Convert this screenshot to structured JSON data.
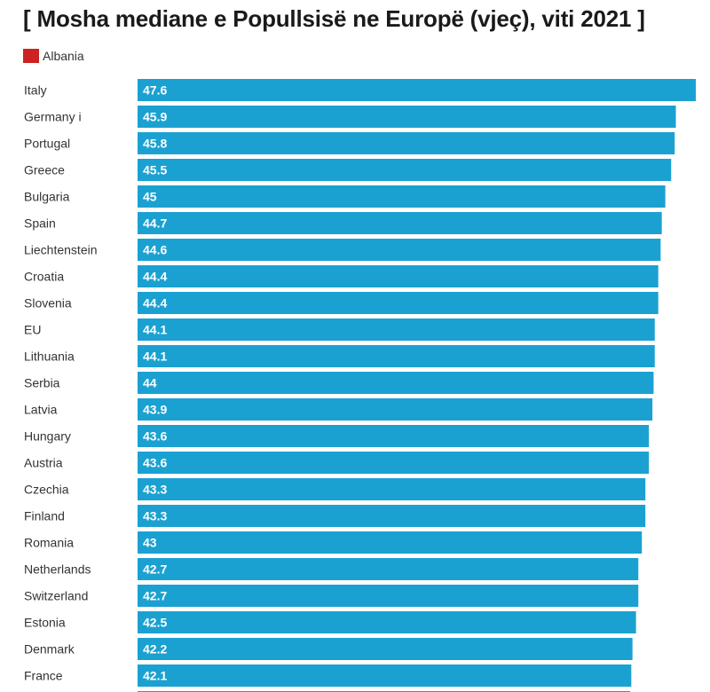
{
  "chart_data": {
    "type": "bar",
    "orientation": "horizontal",
    "title": "[ Mosha mediane e Popullsisë ne Europë (vjeç), viti 2021 ]",
    "legend": [
      {
        "name": "Albania",
        "color": "#cc2222"
      }
    ],
    "legend_placement": "top-left",
    "grid": false,
    "bar_color": "#1ba1d1",
    "xlim": [
      0,
      47.6
    ],
    "categories": [
      "Italy",
      "Germany i",
      "Portugal",
      "Greece",
      "Bulgaria",
      "Spain",
      "Liechtenstein",
      "Croatia",
      "Slovenia",
      "EU",
      "Lithuania",
      "Serbia",
      "Latvia",
      "Hungary",
      "Austria",
      "Czechia",
      "Finland",
      "Romania",
      "Netherlands",
      "Switzerland",
      "Estonia",
      "Denmark",
      "France",
      ""
    ],
    "values": [
      47.6,
      45.9,
      45.8,
      45.5,
      45,
      44.7,
      44.6,
      44.4,
      44.4,
      44.1,
      44.1,
      44,
      43.9,
      43.6,
      43.6,
      43.3,
      43.3,
      43,
      42.7,
      42.7,
      42.5,
      42.2,
      42.1,
      42
    ],
    "value_labels": [
      "47.6",
      "45.9",
      "45.8",
      "45.5",
      "45",
      "44.7",
      "44.6",
      "44.4",
      "44.4",
      "44.1",
      "44.1",
      "44",
      "43.9",
      "43.6",
      "43.6",
      "43.3",
      "43.3",
      "43",
      "42.7",
      "42.7",
      "42.5",
      "42.2",
      "42.1",
      ""
    ]
  }
}
